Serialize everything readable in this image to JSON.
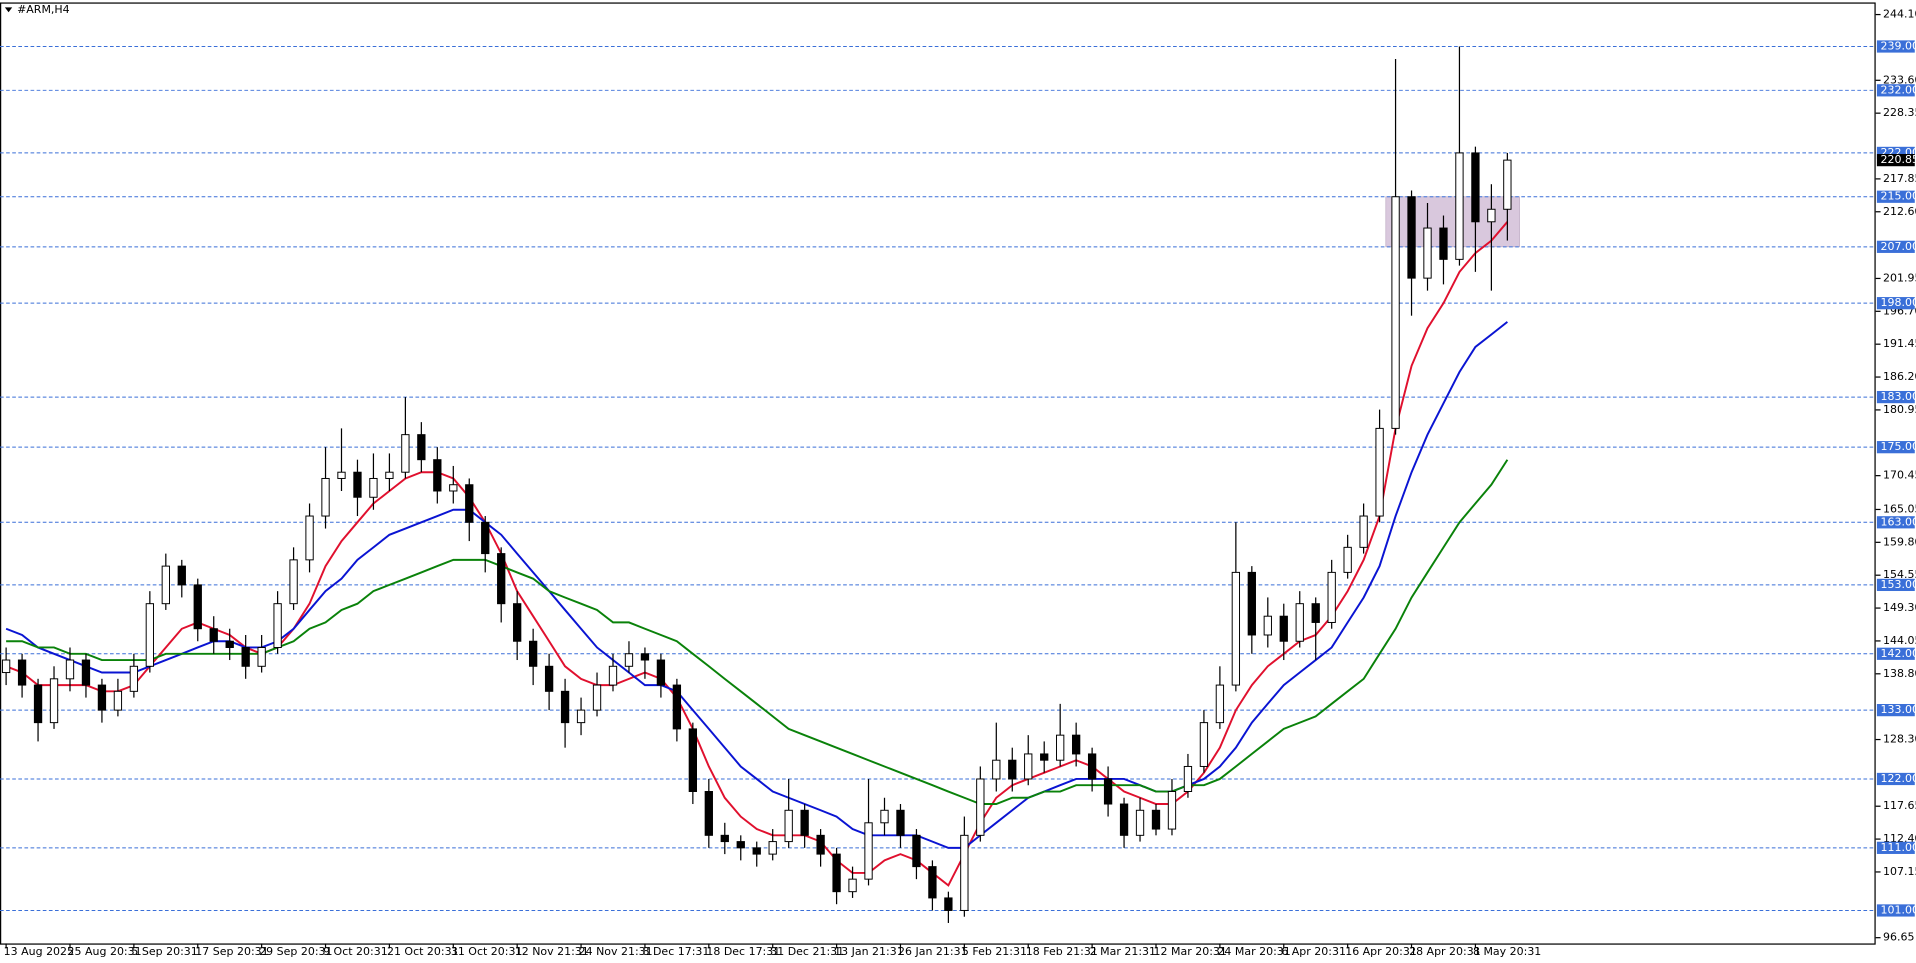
{
  "chart_data": {
    "type": "candlestick",
    "title": "#ARM,H4",
    "categories": [
      "13 Aug 2025",
      null,
      null,
      null,
      "25 Aug 20:31",
      null,
      null,
      null,
      "5 Sep 20:31",
      null,
      null,
      null,
      "17 Sep 20:31",
      null,
      null,
      null,
      "29 Sep 20:31",
      null,
      null,
      null,
      "9 Oct 20:31",
      null,
      null,
      null,
      "21 Oct 20:31",
      null,
      null,
      null,
      "31 Oct 20:31",
      null,
      null,
      null,
      "12 Nov 21:31",
      null,
      null,
      null,
      "24 Nov 21:31",
      null,
      null,
      null,
      "8 Dec 17:31",
      null,
      null,
      null,
      "18 Dec 17:31",
      null,
      null,
      null,
      "31 Dec 21:31",
      null,
      null,
      null,
      "13 Jan 21:31",
      null,
      null,
      null,
      "26 Jan 21:31",
      null,
      null,
      null,
      "5 Feb 21:31",
      null,
      null,
      null,
      "18 Feb 21:31",
      null,
      null,
      null,
      "2 Mar 21:31",
      null,
      null,
      null,
      "12 Mar 20:31",
      null,
      null,
      null,
      "24 Mar 20:31",
      null,
      null,
      null,
      "6 Apr 20:31",
      null,
      null,
      null,
      "16 Apr 20:31",
      null,
      null,
      null,
      "28 Apr 20:31",
      null,
      null,
      null,
      "8 May 20:31",
      null,
      null
    ],
    "candles": {
      "open": [
        139,
        141,
        137,
        131,
        138,
        141,
        137,
        133,
        136,
        140,
        150,
        156,
        153,
        146,
        144,
        143,
        140,
        143,
        150,
        157,
        164,
        170,
        171,
        167,
        170,
        171,
        177,
        173,
        168,
        169,
        163,
        158,
        150,
        144,
        140,
        136,
        131,
        133,
        137,
        140,
        142,
        141,
        137,
        130,
        120,
        113,
        112,
        111,
        110,
        112,
        117,
        113,
        110,
        104,
        106,
        115,
        117,
        113,
        108,
        103,
        101,
        113,
        122,
        125,
        122,
        126,
        125,
        129,
        126,
        122,
        118,
        113,
        117,
        114,
        120,
        124,
        131,
        137,
        155,
        145,
        148,
        144,
        150,
        147,
        155,
        159,
        164,
        178,
        215,
        202,
        210,
        205,
        222,
        211,
        213
      ],
      "high": [
        143,
        142,
        138,
        140,
        143,
        142,
        138,
        138,
        142,
        152,
        158,
        157,
        154,
        148,
        146,
        145,
        145,
        152,
        159,
        166,
        175,
        178,
        173,
        174,
        174,
        183,
        179,
        175,
        172,
        170,
        164,
        159,
        152,
        146,
        142,
        138,
        135,
        139,
        142,
        144,
        143,
        142,
        138,
        131,
        122,
        115,
        113,
        112,
        114,
        122,
        118,
        114,
        111,
        108,
        122,
        119,
        118,
        114,
        109,
        104,
        116,
        124,
        131,
        127,
        129,
        128,
        134,
        131,
        127,
        124,
        119,
        119,
        118,
        122,
        126,
        133,
        140,
        163,
        156,
        151,
        150,
        152,
        151,
        157,
        161,
        166,
        181,
        237,
        216,
        214,
        212,
        239,
        223,
        217,
        222
      ],
      "low": [
        137,
        135,
        128,
        130,
        136,
        135,
        131,
        132,
        135,
        139,
        149,
        151,
        144,
        142,
        141,
        138,
        139,
        142,
        149,
        155,
        162,
        168,
        164,
        165,
        168,
        170,
        171,
        166,
        166,
        160,
        155,
        147,
        141,
        137,
        133,
        127,
        129,
        132,
        136,
        139,
        138,
        135,
        128,
        118,
        111,
        110,
        109,
        108,
        109,
        111,
        111,
        108,
        102,
        103,
        105,
        113,
        111,
        106,
        101,
        99,
        100,
        112,
        120,
        120,
        121,
        123,
        124,
        124,
        120,
        116,
        111,
        112,
        113,
        113,
        119,
        123,
        130,
        136,
        142,
        143,
        141,
        143,
        141,
        146,
        154,
        158,
        163,
        177,
        196,
        200,
        201,
        204,
        203,
        200,
        208
      ],
      "close": [
        141,
        137,
        131,
        138,
        141,
        137,
        133,
        136,
        140,
        150,
        156,
        153,
        146,
        144,
        143,
        140,
        143,
        150,
        157,
        164,
        170,
        171,
        167,
        170,
        171,
        177,
        173,
        168,
        169,
        163,
        158,
        150,
        144,
        140,
        136,
        131,
        133,
        137,
        140,
        142,
        141,
        137,
        130,
        120,
        113,
        112,
        111,
        110,
        112,
        117,
        113,
        110,
        104,
        106,
        115,
        117,
        113,
        108,
        103,
        101,
        113,
        122,
        125,
        122,
        126,
        125,
        129,
        126,
        122,
        118,
        113,
        117,
        114,
        120,
        124,
        131,
        137,
        155,
        145,
        148,
        144,
        150,
        147,
        155,
        159,
        164,
        178,
        215,
        202,
        210,
        205,
        222,
        211,
        213,
        220.85
      ]
    },
    "up_color": "#ffffff",
    "down_color": "#000000",
    "ma_lines": [
      {
        "color": "#e0102e",
        "values": [
          140,
          139,
          137,
          137,
          137,
          137,
          136,
          136,
          137,
          140,
          143,
          146,
          147,
          146,
          145,
          143,
          142,
          143,
          146,
          150,
          156,
          160,
          163,
          166,
          168,
          170,
          171,
          171,
          170,
          167,
          163,
          158,
          152,
          148,
          144,
          140,
          138,
          137,
          137,
          138,
          139,
          138,
          135,
          130,
          124,
          119,
          116,
          114,
          113,
          113,
          113,
          112,
          109,
          107,
          107,
          109,
          110,
          109,
          107,
          105,
          110,
          115,
          119,
          121,
          122,
          123,
          124,
          125,
          124,
          122,
          120,
          119,
          118,
          118,
          120,
          123,
          127,
          133,
          137,
          140,
          142,
          144,
          145,
          148,
          152,
          157,
          164,
          178,
          188,
          194,
          198,
          203,
          206,
          208,
          211
        ]
      },
      {
        "color": "#0a14d2",
        "values": [
          146,
          145,
          143,
          142,
          141,
          140,
          139,
          139,
          139,
          140,
          141,
          142,
          143,
          144,
          144,
          143,
          143,
          144,
          146,
          149,
          152,
          154,
          157,
          159,
          161,
          162,
          163,
          164,
          165,
          165,
          163,
          161,
          158,
          155,
          152,
          149,
          146,
          143,
          141,
          139,
          137,
          137,
          136,
          133,
          130,
          127,
          124,
          122,
          120,
          119,
          118,
          117,
          116,
          114,
          113,
          113,
          113,
          113,
          112,
          111,
          111,
          113,
          115,
          117,
          119,
          120,
          121,
          122,
          122,
          122,
          122,
          121,
          120,
          120,
          121,
          122,
          124,
          127,
          131,
          134,
          137,
          139,
          141,
          143,
          147,
          151,
          156,
          164,
          171,
          177,
          182,
          187,
          191,
          193,
          195
        ]
      },
      {
        "color": "#0a820a",
        "values": [
          144,
          144,
          143,
          143,
          142,
          142,
          141,
          141,
          141,
          141,
          142,
          142,
          142,
          142,
          142,
          142,
          142,
          143,
          144,
          146,
          147,
          149,
          150,
          152,
          153,
          154,
          155,
          156,
          157,
          157,
          157,
          156,
          155,
          154,
          152,
          151,
          150,
          149,
          147,
          147,
          146,
          145,
          144,
          142,
          140,
          138,
          136,
          134,
          132,
          130,
          129,
          128,
          127,
          126,
          125,
          124,
          123,
          122,
          121,
          120,
          119,
          118,
          118,
          119,
          119,
          120,
          120,
          121,
          121,
          121,
          121,
          121,
          120,
          120,
          121,
          121,
          122,
          124,
          126,
          128,
          130,
          131,
          132,
          134,
          136,
          138,
          142,
          146,
          151,
          155,
          159,
          163,
          166,
          169,
          173
        ]
      }
    ],
    "levels": [
      {
        "value": 239,
        "label": "239.00"
      },
      {
        "value": 232,
        "label": "232.00"
      },
      {
        "value": 222,
        "label": "222.00"
      },
      {
        "value": 215,
        "label": "215.00"
      },
      {
        "value": 207,
        "label": "207.00"
      },
      {
        "value": 198,
        "label": "198.00"
      },
      {
        "value": 183,
        "label": "183.00"
      },
      {
        "value": 175,
        "label": "175.00"
      },
      {
        "value": 163,
        "label": "163.00"
      },
      {
        "value": 153,
        "label": "153.00"
      },
      {
        "value": 142,
        "label": "142.00"
      },
      {
        "value": 133,
        "label": "133.00"
      },
      {
        "value": 122,
        "label": "122.00"
      },
      {
        "value": 111,
        "label": "111.00"
      },
      {
        "value": 101,
        "label": "101.00"
      }
    ],
    "level_color": "#3a6fd8",
    "zone": {
      "top": 215,
      "bottom": 207,
      "color": "#d9c8dd"
    },
    "last_price": 220.85,
    "ylim": [
      95.73,
      245.84
    ],
    "yticks": [
      {
        "value": 244.1,
        "label": "244.10"
      },
      {
        "value": 233.6,
        "label": "233.60"
      },
      {
        "value": 228.35,
        "label": "228.35"
      },
      {
        "value": 217.85,
        "label": "217.85"
      },
      {
        "value": 212.6,
        "label": "212.60"
      },
      {
        "value": 201.95,
        "label": "201.95"
      },
      {
        "value": 196.7,
        "label": "196.70"
      },
      {
        "value": 191.45,
        "label": "191.45"
      },
      {
        "value": 186.2,
        "label": "186.20"
      },
      {
        "value": 180.95,
        "label": "180.95"
      },
      {
        "value": 170.45,
        "label": "170.45"
      },
      {
        "value": 165.05,
        "label": "165.05"
      },
      {
        "value": 159.8,
        "label": "159.80"
      },
      {
        "value": 154.55,
        "label": "154.55"
      },
      {
        "value": 149.3,
        "label": "149.30"
      },
      {
        "value": 144.05,
        "label": "144.05"
      },
      {
        "value": 138.8,
        "label": "138.80"
      },
      {
        "value": 128.3,
        "label": "128.30"
      },
      {
        "value": 117.65,
        "label": "117.65"
      },
      {
        "value": 112.4,
        "label": "112.40"
      },
      {
        "value": 107.15,
        "label": "107.15"
      },
      {
        "value": 96.65,
        "label": "96.65"
      }
    ]
  }
}
